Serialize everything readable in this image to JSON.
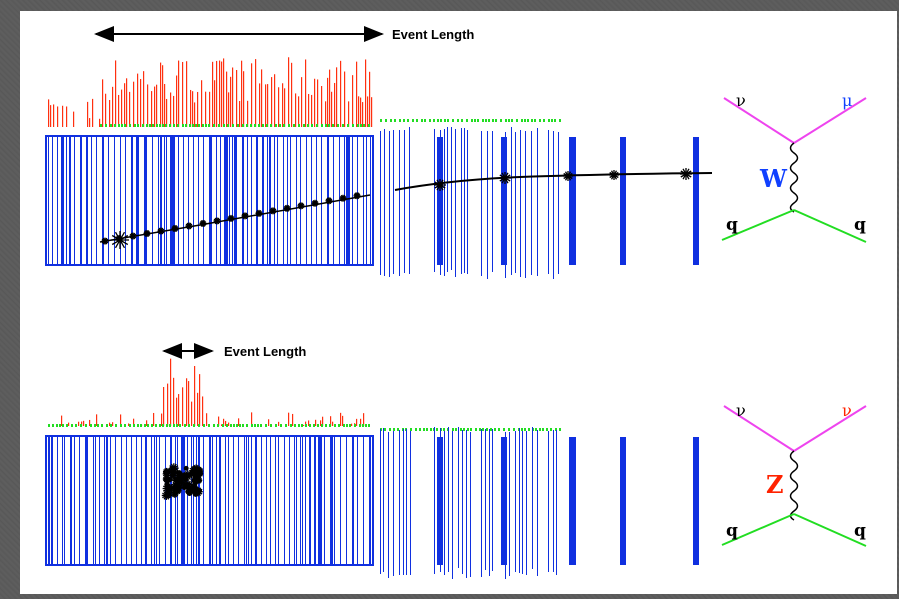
{
  "colors": {
    "detector": "#1030e0",
    "energy_hist": "#ff3010",
    "hits": "#22dd22",
    "fermion_upper": "#ee44ee",
    "quark_lines": "#22dd22",
    "w_boson": "#1040ff",
    "z_boson": "#ff2200",
    "mu_label": "#1040ff",
    "nu2_label": "#ff2200"
  },
  "w_event": {
    "event_length_label": "Event Length",
    "feynman": {
      "top_left": "ν",
      "top_right": "μ",
      "boson": "W",
      "bottom_left": "q",
      "bottom_right": "q"
    }
  },
  "z_event": {
    "event_length_label": "Event Length",
    "feynman": {
      "top_left": "ν",
      "top_right": "ν",
      "boson": "Z",
      "bottom_left": "q",
      "bottom_right": "q"
    }
  }
}
